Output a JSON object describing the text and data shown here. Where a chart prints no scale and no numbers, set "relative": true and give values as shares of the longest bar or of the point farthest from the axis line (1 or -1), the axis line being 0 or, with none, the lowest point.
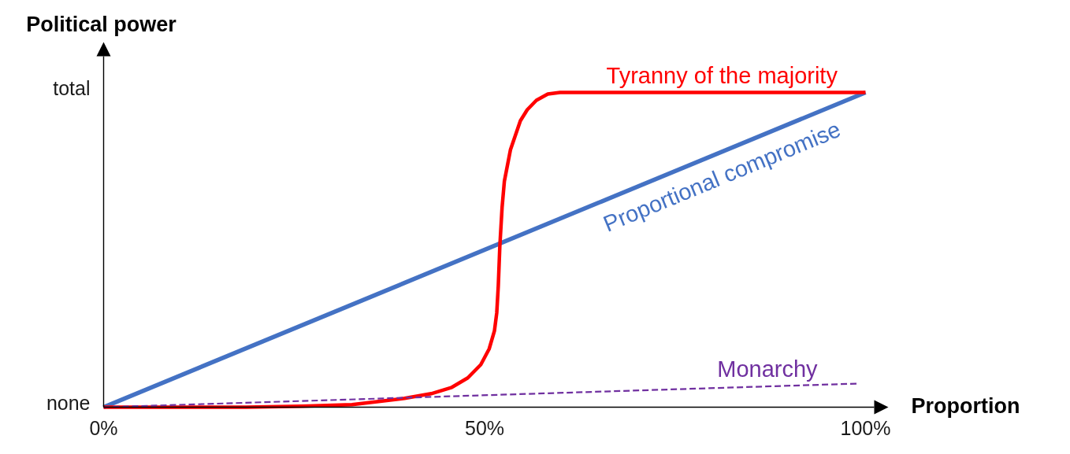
{
  "chart_data": {
    "type": "line",
    "relative": true,
    "xlabel": "Proportion",
    "ylabel": "Political power",
    "xlim": [
      0,
      103
    ],
    "xticks": [
      {
        "value": 0,
        "label": "0%"
      },
      {
        "value": 50,
        "label": "50%"
      },
      {
        "value": 100,
        "label": "100%"
      }
    ],
    "annotations": [
      "none",
      "total"
    ],
    "series": [
      {
        "name": "Proportional compromise",
        "color": "#4472c4",
        "x": [
          0,
          100
        ],
        "values": [
          0,
          1
        ]
      },
      {
        "name": "Tyranny of the majority",
        "color": "#ff0000",
        "x": [
          0,
          5,
          18.7,
          26,
          32.6,
          36.1,
          39.5,
          43.0,
          45.7,
          47.8,
          49.5,
          50.6,
          51.3,
          51.6,
          51.8,
          52.0,
          52.3,
          52.6,
          53.4,
          54.7,
          55.6,
          56.8,
          58.3,
          59.9,
          100
        ],
        "values": [
          0,
          0,
          0,
          0.003,
          0.008,
          0.018,
          0.028,
          0.043,
          0.063,
          0.093,
          0.135,
          0.185,
          0.243,
          0.3,
          0.385,
          0.51,
          0.635,
          0.718,
          0.818,
          0.91,
          0.945,
          0.975,
          0.995,
          1,
          1
        ]
      },
      {
        "name": "Monarchy",
        "color": "#7030a0",
        "x": [
          0,
          99
        ],
        "values": [
          0,
          0.075
        ],
        "line_style": "dashed"
      }
    ]
  }
}
